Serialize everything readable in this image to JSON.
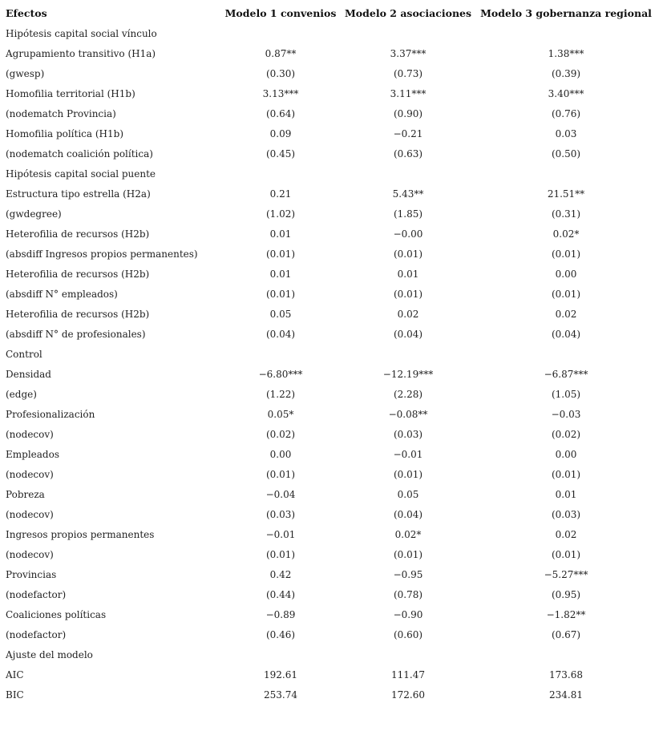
{
  "table": {
    "header": [
      "Efectos",
      "Modelo 1 convenios",
      "Modelo 2 asociaciones",
      "Modelo 3 gobernanza regional"
    ],
    "rows": [
      [
        "Hipótesis capital social vínculo"
      ],
      [
        "Agrupamiento transitivo (H1a)",
        "0.87**",
        "3.37***",
        "1.38***"
      ],
      [
        "(gwesp)",
        "(0.30)",
        "(0.73)",
        "(0.39)"
      ],
      [
        "Homofilia territorial (H1b)",
        "3.13***",
        "3.11***",
        "3.40***"
      ],
      [
        "(nodematch Provincia)",
        "(0.64)",
        "(0.90)",
        "(0.76)"
      ],
      [
        "Homofilia política (H1b)",
        "0.09",
        "−0.21",
        "0.03"
      ],
      [
        "(nodematch coalición política)",
        "(0.45)",
        "(0.63)",
        "(0.50)"
      ],
      [
        "Hipótesis capital social puente"
      ],
      [
        "Estructura tipo estrella (H2a)",
        "0.21",
        "5.43**",
        "21.51**"
      ],
      [
        "(gwdegree)",
        "(1.02)",
        "(1.85)",
        "(0.31)"
      ],
      [
        "Heterofilia de recursos (H2b)",
        "0.01",
        "−0.00",
        "0.02*"
      ],
      [
        "(absdiff Ingresos propios permanentes)",
        "(0.01)",
        "(0.01)",
        "(0.01)"
      ],
      [
        "Heterofilia de recursos (H2b)",
        "0.01",
        "0.01",
        "0.00"
      ],
      [
        "(absdiff N° empleados)",
        "(0.01)",
        "(0.01)",
        "(0.01)"
      ],
      [
        "Heterofilia de recursos (H2b)",
        "0.05",
        "0.02",
        "0.02"
      ],
      [
        "(absdiff N° de profesionales)",
        "(0.04)",
        "(0.04)",
        "(0.04)"
      ],
      [
        "Control"
      ],
      [
        "Densidad",
        "−6.80***",
        "−12.19***",
        "−6.87***"
      ],
      [
        "(edge)",
        "(1.22)",
        "(2.28)",
        "(1.05)"
      ],
      [
        "Profesionalización",
        "0.05*",
        "−0.08**",
        "−0.03"
      ],
      [
        "(nodecov)",
        "(0.02)",
        "(0.03)",
        "(0.02)"
      ],
      [
        "Empleados",
        "0.00",
        "−0.01",
        "0.00"
      ],
      [
        "(nodecov)",
        "(0.01)",
        "(0.01)",
        "(0.01)"
      ],
      [
        "Pobreza",
        "−0.04",
        "0.05",
        "0.01"
      ],
      [
        "(nodecov)",
        "(0.03)",
        "(0.04)",
        "(0.03)"
      ],
      [
        "Ingresos propios permanentes",
        "−0.01",
        "0.02*",
        "0.02"
      ],
      [
        "(nodecov)",
        "(0.01)",
        "(0.01)",
        "(0.01)"
      ],
      [
        "Provincias",
        "0.42",
        "−0.95",
        "−5.27***"
      ],
      [
        "(nodefactor)",
        "(0.44)",
        "(0.78)",
        "(0.95)"
      ],
      [
        "Coaliciones políticas",
        "−0.89",
        "−0.90",
        "−1.82**"
      ],
      [
        "(nodefactor)",
        "(0.46)",
        "(0.60)",
        "(0.67)"
      ],
      [
        "Ajuste del modelo"
      ],
      [
        "AIC",
        "192.61",
        "111.47",
        "173.68"
      ],
      [
        "BIC",
        "253.74",
        "172.60",
        "234.81"
      ]
    ]
  }
}
